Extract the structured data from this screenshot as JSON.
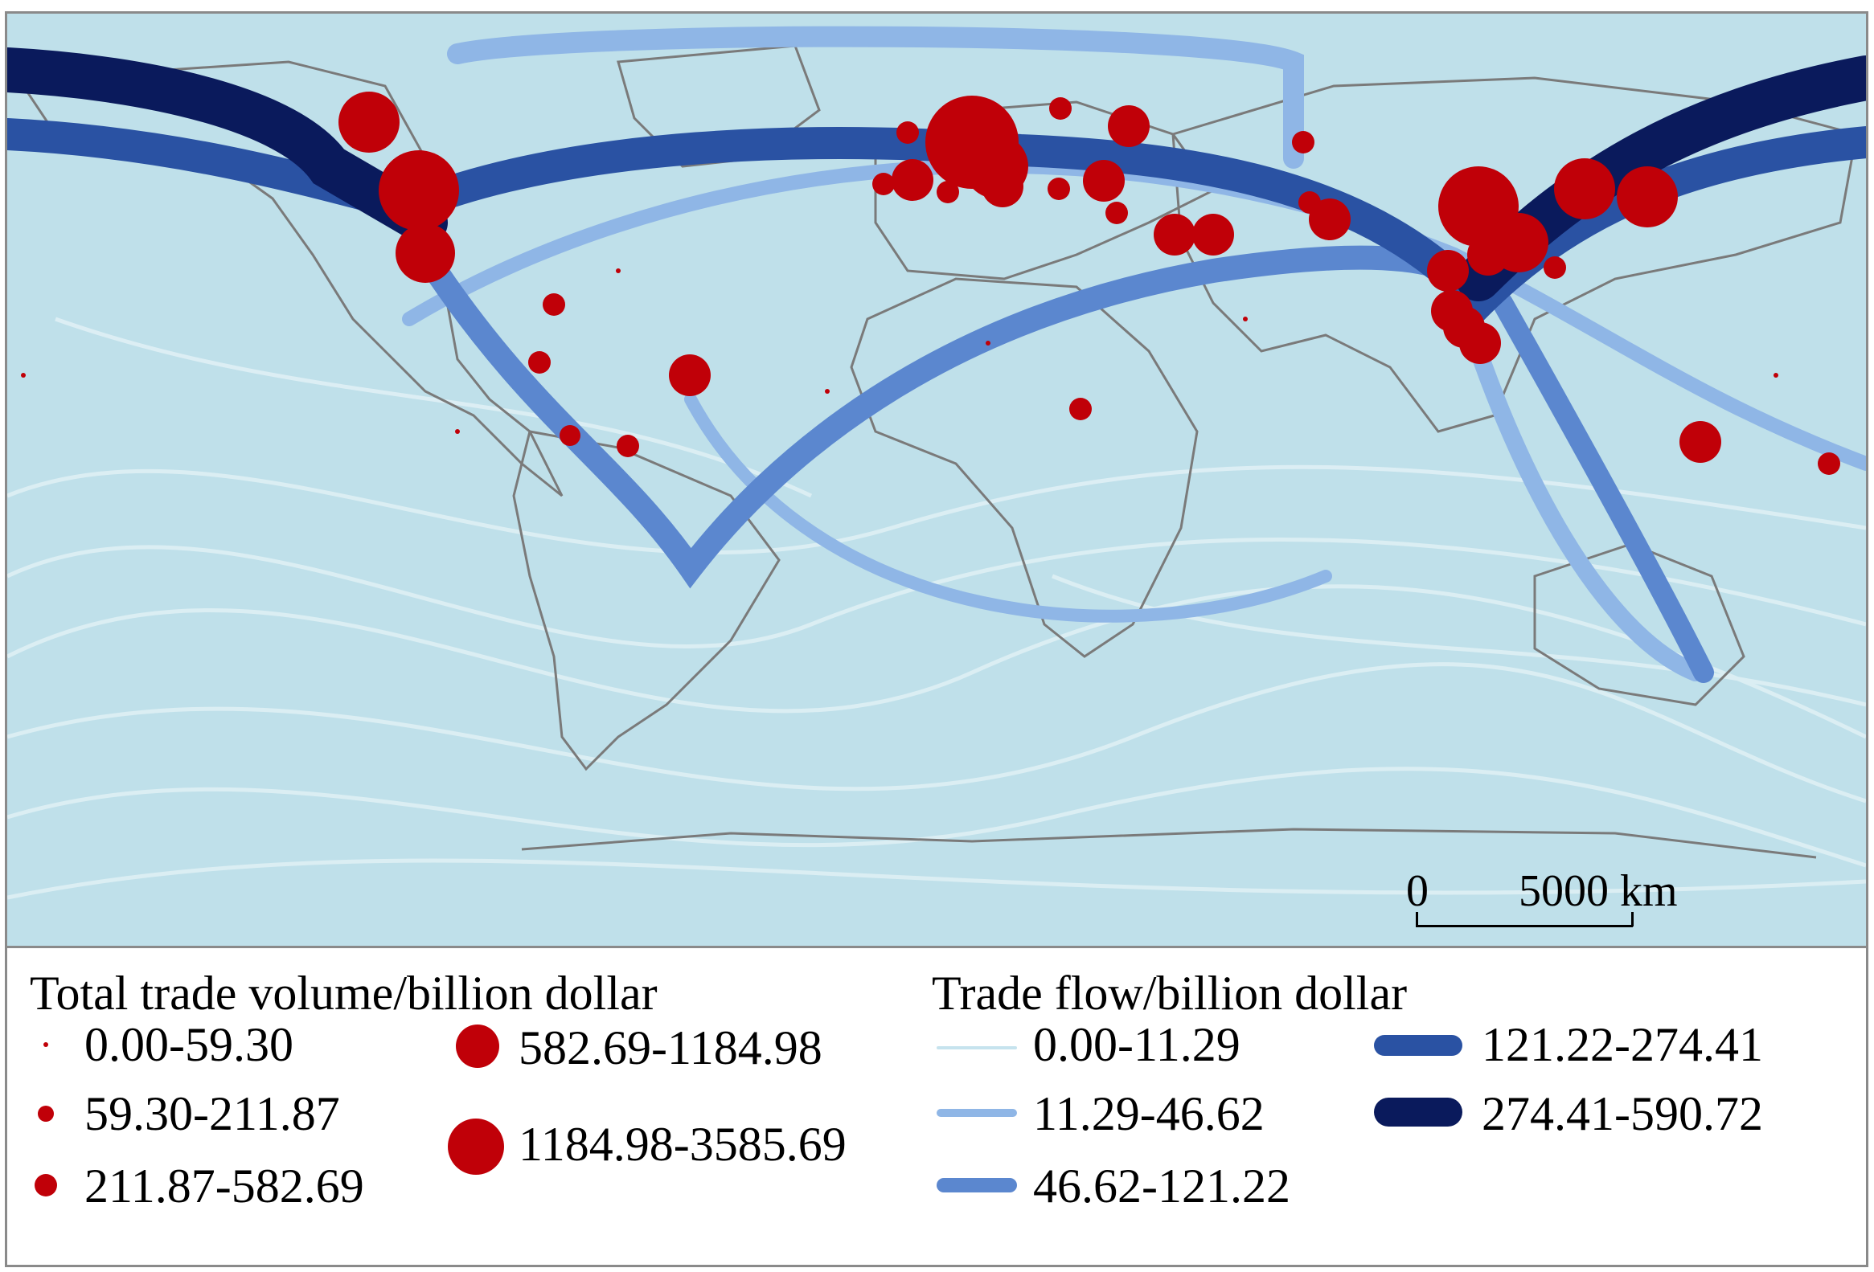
{
  "map": {
    "background_color": "#bfe0ea",
    "land_outline_color": "#7a7a7a",
    "node_color": "#c00008",
    "scale_bar": {
      "zero_label": "0",
      "distance_label": "5000 km"
    }
  },
  "legend": {
    "volume": {
      "title": "Total trade volume/billion dollar",
      "classes": [
        {
          "label": "0.00-59.30"
        },
        {
          "label": "59.30-211.87"
        },
        {
          "label": "211.87-582.69"
        },
        {
          "label": "582.69-1184.98"
        },
        {
          "label": "1184.98-3585.69"
        }
      ]
    },
    "flow": {
      "title": "Trade flow/billion dollar",
      "classes": [
        {
          "label": "0.00-11.29",
          "color": "#c6e3ee"
        },
        {
          "label": "11.29-46.62",
          "color": "#8fb6e6"
        },
        {
          "label": "46.62-121.22",
          "color": "#5b87cf"
        },
        {
          "label": "121.22-274.41",
          "color": "#2a52a3"
        },
        {
          "label": "274.41-590.72",
          "color": "#0a1a5c"
        }
      ]
    }
  }
}
